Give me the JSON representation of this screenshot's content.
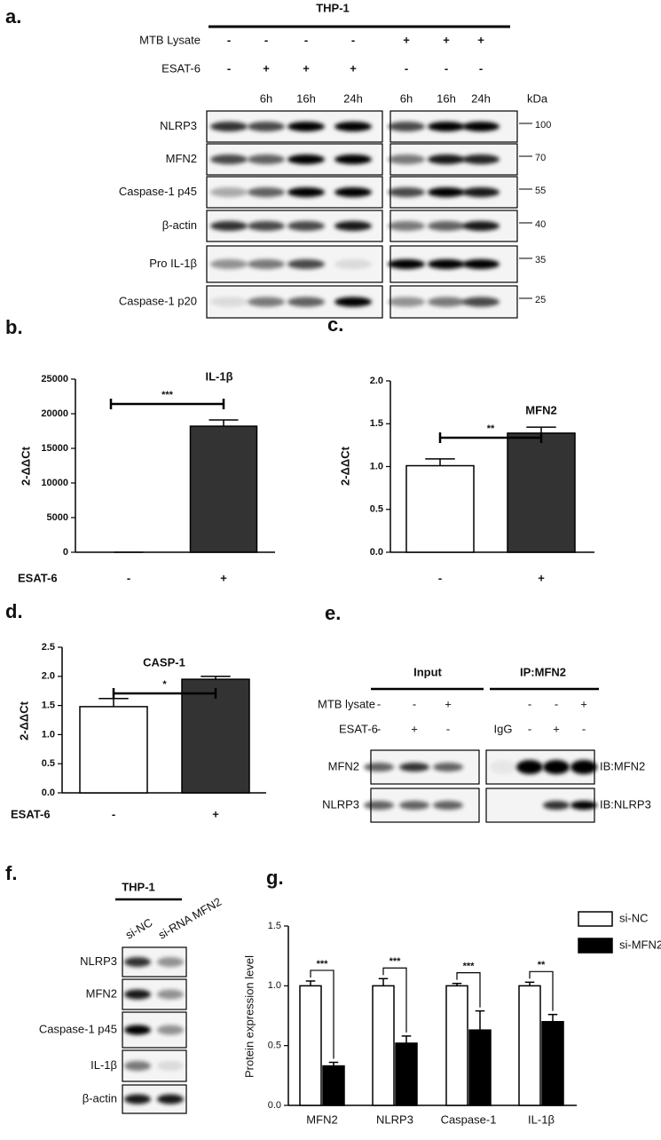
{
  "panel_a": {
    "label": "a.",
    "cell": "THP-1",
    "rows": [
      {
        "label": "MTB Lysate",
        "left": [
          "-",
          "-",
          "-",
          "-"
        ],
        "right": [
          "+",
          "+",
          "+"
        ]
      },
      {
        "label": "ESAT-6",
        "left": [
          "-",
          "+",
          "+",
          "+"
        ],
        "right": [
          "-",
          "-",
          "-"
        ]
      }
    ],
    "times_left": [
      "6h",
      "16h",
      "24h"
    ],
    "times_right": [
      "6h",
      "16h",
      "24h"
    ],
    "kda_label": "kDa",
    "blots": [
      {
        "name": "NLRP3",
        "kda": 100
      },
      {
        "name": "MFN2",
        "kda": 70
      },
      {
        "name": "Caspase-1 p45",
        "kda": 55
      },
      {
        "name": "β-actin",
        "kda": 40
      },
      {
        "name": "Pro IL-1β",
        "kda": 35
      },
      {
        "name": "Caspase-1 p20",
        "kda": 25
      }
    ]
  },
  "panel_e": {
    "label": "e.",
    "headers": [
      "Input",
      "IP:MFN2"
    ],
    "rows": [
      {
        "label": "MTB  lysate",
        "left": [
          "-",
          "-",
          "+"
        ],
        "right": [
          "-",
          "-",
          "+"
        ]
      },
      {
        "label": "ESAT-6",
        "left": [
          "-",
          "+",
          "-"
        ],
        "right": [
          "IgG",
          "-",
          "+",
          "-"
        ]
      }
    ],
    "blots": [
      {
        "name": "MFN2",
        "ib": "IB:MFN2"
      },
      {
        "name": "NLRP3",
        "ib": "IB:NLRP3"
      }
    ]
  },
  "panel_f": {
    "label": "f.",
    "cell": "THP-1",
    "lanes": [
      "si-NC",
      "si-RNA MFN2"
    ],
    "blots": [
      "NLRP3",
      "MFN2",
      "Caspase-1 p45",
      "IL-1β",
      "β-actin"
    ]
  },
  "chart_data": [
    {
      "type": "bar",
      "panel_label": "b.",
      "title": "IL-1β",
      "y_label": "2-ΔΔCt",
      "x_label": "ESAT-6",
      "categories": [
        "-",
        "+"
      ],
      "values": [
        0,
        18200
      ],
      "errors": [
        0,
        900
      ],
      "colors": [
        "#ffffff",
        "#333333"
      ],
      "ylim": [
        0,
        25000
      ],
      "yticks": [
        0,
        5000,
        10000,
        15000,
        20000,
        25000
      ],
      "significance": "***"
    },
    {
      "type": "bar",
      "panel_label": "c.",
      "title": "MFN2",
      "y_label": "2-ΔΔCt",
      "categories": [
        "-",
        "+"
      ],
      "values": [
        1.01,
        1.39
      ],
      "errors": [
        0.08,
        0.07
      ],
      "colors": [
        "#ffffff",
        "#333333"
      ],
      "ylim": [
        0,
        2.0
      ],
      "yticks": [
        {
          "value": 0,
          "label": "0.0"
        },
        0.5,
        {
          "value": 1,
          "label": "1.0"
        },
        1.5,
        {
          "value": 2,
          "label": "2.0"
        }
      ],
      "significance": "**"
    },
    {
      "type": "bar",
      "panel_label": "d.",
      "title": "CASP-1",
      "y_label": "2-ΔΔCt",
      "x_label": "ESAT-6",
      "categories": [
        "-",
        "+"
      ],
      "values": [
        1.48,
        1.95
      ],
      "errors": [
        0.14,
        0.05
      ],
      "colors": [
        "#ffffff",
        "#333333"
      ],
      "ylim": [
        0,
        2.5
      ],
      "yticks": [
        {
          "value": 0,
          "label": "0.0"
        },
        0.5,
        {
          "value": 1,
          "label": "1.0"
        },
        1.5,
        {
          "value": 2,
          "label": "2.0"
        },
        2.5
      ],
      "significance": "*"
    },
    {
      "type": "bar",
      "panel_label": "g.",
      "y_label": "Protein expression level",
      "categories": [
        "MFN2",
        "NLRP3",
        "Caspase-1",
        "IL-1β"
      ],
      "series": [
        {
          "name": "si-NC",
          "color": "#ffffff",
          "values": [
            1.0,
            1.0,
            1.0,
            1.0
          ],
          "errors": [
            0.04,
            0.06,
            0.02,
            0.03
          ]
        },
        {
          "name": "si-MFN2",
          "color": "#000000",
          "values": [
            0.33,
            0.52,
            0.63,
            0.7
          ],
          "errors": [
            0.03,
            0.06,
            0.16,
            0.06
          ]
        }
      ],
      "ylim": [
        0,
        1.5
      ],
      "yticks": [
        {
          "value": 0,
          "label": "0.0"
        },
        0.5,
        {
          "value": 1,
          "label": "1.0"
        },
        1.5
      ],
      "significance": [
        "***",
        "***",
        "***",
        "**"
      ]
    }
  ]
}
